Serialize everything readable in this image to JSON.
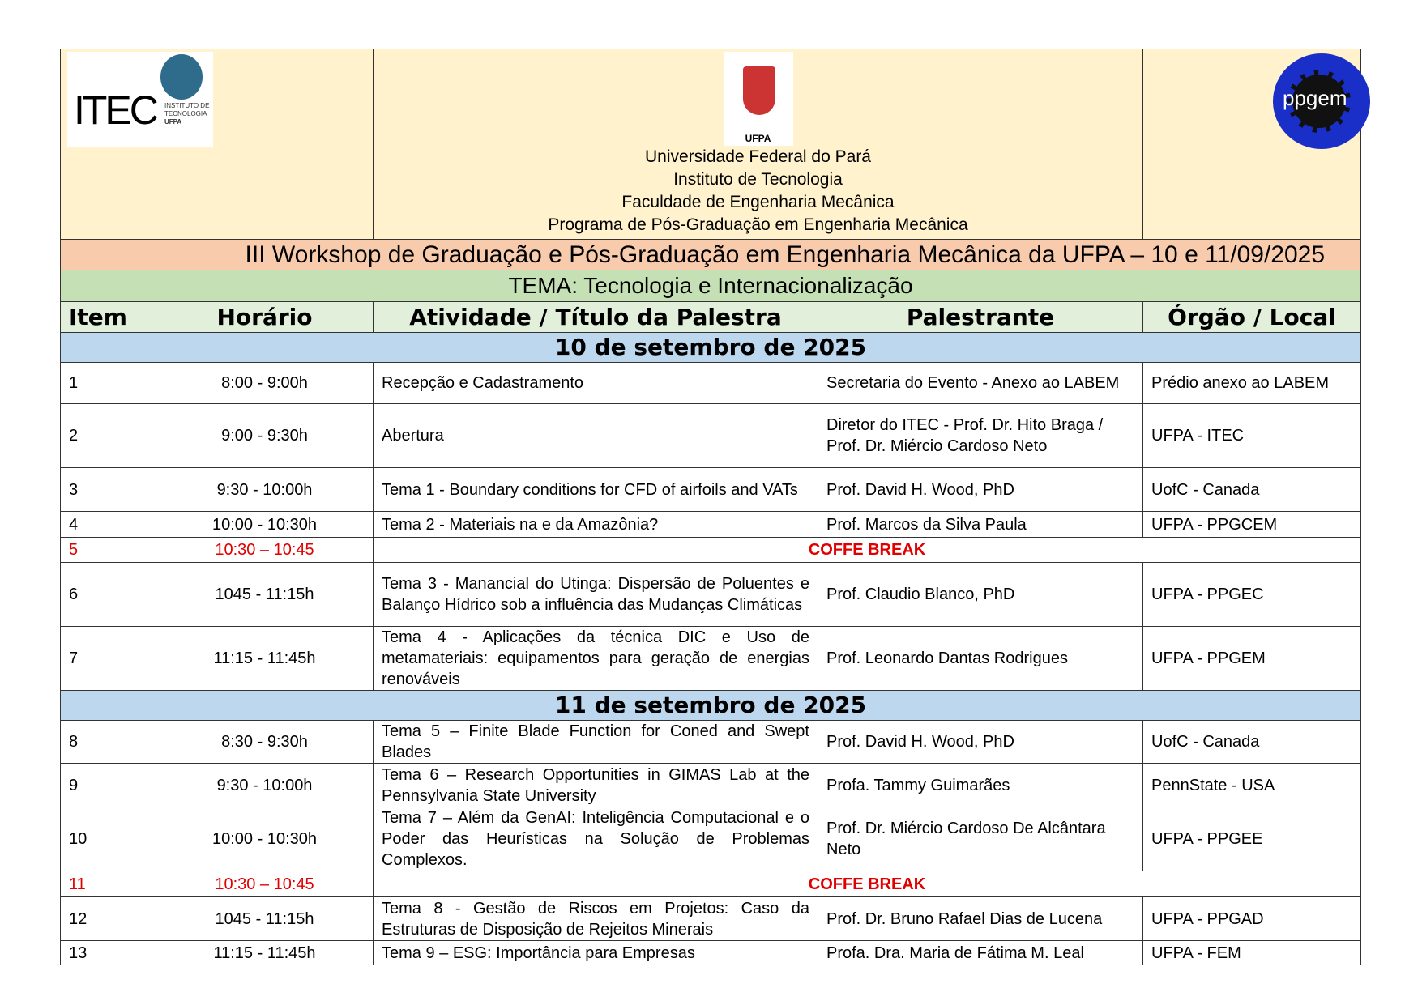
{
  "header": {
    "logo_left": "ITEC INSTITUTO DE TECNOLOGIA UFPA",
    "crest_label": "UFPA",
    "logo_right": "ppgem",
    "lines": [
      "Universidade Federal do Pará",
      "Instituto de Tecnologia",
      "Faculdade de Engenharia Mecânica",
      "Programa de Pós-Graduação em Engenharia Mecânica"
    ]
  },
  "title": "III Workshop de Graduação e Pós-Graduação em Engenharia Mecânica da UFPA – 10 e 11/09/2025",
  "tema": "TEMA: Tecnologia e Internacionalização",
  "columns": [
    "Item",
    "Horário",
    "Atividade / Título da Palestra",
    "Palestrante",
    "Órgão / Local"
  ],
  "days": [
    {
      "date": "10 de setembro de 2025",
      "rows": [
        {
          "item": "1",
          "time": "8:00 - 9:00h",
          "activity": "Recepção e Cadastramento",
          "speaker": "Secretaria do Evento - Anexo ao LABEM",
          "place": "Prédio anexo ao LABEM"
        },
        {
          "item": "2",
          "time": "9:00 - 9:30h",
          "activity": "Abertura",
          "speaker": "Diretor do ITEC - Prof. Dr. Hito Braga / Prof. Dr. Miércio Cardoso Neto",
          "place": "UFPA - ITEC"
        },
        {
          "item": "3",
          "time": "9:30 - 10:00h",
          "activity": "Tema 1 - Boundary conditions for CFD of airfoils and VATs",
          "speaker": "Prof. David H. Wood, PhD",
          "place": "UofC - Canada"
        },
        {
          "item": "4",
          "time": "10:00 - 10:30h",
          "activity": "Tema 2 - Materiais na e da Amazônia?",
          "speaker": "Prof. Marcos da Silva Paula",
          "place": "UFPA - PPGCEM"
        },
        {
          "item": "5",
          "time": "10:30 – 10:45",
          "activity": "COFFE BREAK"
        },
        {
          "item": "6",
          "time": "1045 - 11:15h",
          "activity": "Tema 3 - Manancial do Utinga: Dispersão de Poluentes e Balanço Hídrico sob a influência das Mudanças Climáticas",
          "speaker": "Prof. Claudio Blanco, PhD",
          "place": "UFPA - PPGEC"
        },
        {
          "item": "7",
          "time": "11:15 - 11:45h",
          "activity": "Tema 4 - Aplicações da técnica DIC e Uso de metamateriais: equipamentos para geração de energias renováveis",
          "speaker": "Prof. Leonardo Dantas Rodrigues",
          "place": "UFPA - PPGEM"
        }
      ]
    },
    {
      "date": "11 de setembro de 2025",
      "rows": [
        {
          "item": "8",
          "time": "8:30 - 9:30h",
          "activity": "Tema 5 – Finite Blade Function for Coned and Swept Blades",
          "speaker": "Prof. David H. Wood, PhD",
          "place": "UofC - Canada"
        },
        {
          "item": "9",
          "time": "9:30 - 10:00h",
          "activity": "Tema 6 – Research Opportunities in GIMAS Lab at the Pennsylvania State University",
          "speaker": "Profa. Tammy Guimarães",
          "place": "PennState - USA"
        },
        {
          "item": "10",
          "time": "10:00 - 10:30h",
          "activity": "Tema 7 – Além da GenAI: Inteligência Computacional e o Poder das Heurísticas na Solução de Problemas Complexos.",
          "speaker": "Prof. Dr. Miércio Cardoso De Alcântara Neto",
          "place": "UFPA - PPGEE"
        },
        {
          "item": "11",
          "time": "10:30 – 10:45",
          "activity": "COFFE BREAK"
        },
        {
          "item": "12",
          "time": "1045 - 11:15h",
          "activity": "Tema 8 - Gestão de Riscos em Projetos: Caso da Estruturas de Disposição de Rejeitos Minerais",
          "speaker": "Prof. Dr. Bruno Rafael Dias de Lucena",
          "place": "UFPA - PPGAD"
        },
        {
          "item": "13",
          "time": "11:15 - 11:45h",
          "activity": "Tema 9 – ESG: Importância para Empresas",
          "speaker": "Profa. Dra. Maria de Fátima M. Leal",
          "place": "UFPA - FEM"
        }
      ]
    }
  ],
  "colors": {
    "header_bg": "#fff2cc",
    "title_bg": "#f8cbad",
    "tema_bg": "#c5e0b4",
    "colhead_bg": "#e2efda",
    "date_bg": "#bdd7ee",
    "break_red": "#e00000"
  }
}
